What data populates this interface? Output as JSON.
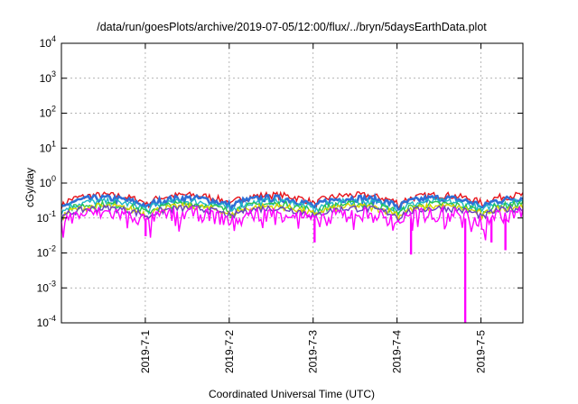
{
  "chart_data": {
    "type": "line",
    "title": "/data/run/goesPlots/archive/2019-07-05/12:00/flux/../bryn/5daysEarthData.plot",
    "xlabel": "Coordinated Universal Time (UTC)",
    "ylabel": "cGy/day",
    "yscale": "log",
    "ylim": [
      0.0001,
      10000
    ],
    "yticks": [
      {
        "value": 0.0001,
        "base": "10",
        "exp": "-4"
      },
      {
        "value": 0.001,
        "base": "10",
        "exp": "-3"
      },
      {
        "value": 0.01,
        "base": "10",
        "exp": "-2"
      },
      {
        "value": 0.1,
        "base": "10",
        "exp": "-1"
      },
      {
        "value": 1,
        "base": "10",
        "exp": "0"
      },
      {
        "value": 10,
        "base": "10",
        "exp": "1"
      },
      {
        "value": 100,
        "base": "10",
        "exp": "2"
      },
      {
        "value": 1000,
        "base": "10",
        "exp": "3"
      },
      {
        "value": 10000,
        "base": "10",
        "exp": "4"
      }
    ],
    "xlim": [
      "2019-06-30 00:00",
      "2019-07-05 12:00"
    ],
    "xticks": [
      "2019-7-1",
      "2019-7-2",
      "2019-7-3",
      "2019-7-4",
      "2019-7-5"
    ],
    "grid": true,
    "legend": "none",
    "series": [
      {
        "color": "#e8141b",
        "level": 0.38
      },
      {
        "color": "#2e6fd6",
        "level": 0.31
      },
      {
        "color": "#1fb6c8",
        "level": 0.25
      },
      {
        "color": "#29c450",
        "level": 0.21
      },
      {
        "color": "#d8d400",
        "level": 0.18
      },
      {
        "color": "#6a3fc2",
        "level": 0.16
      },
      {
        "color": "#ff00ff",
        "level": 0.12
      }
    ],
    "dips": [
      {
        "x": "2019-07-01 00:05",
        "value": 0.03
      },
      {
        "x": "2019-07-03 00:25",
        "value": 0.02
      },
      {
        "x": "2019-07-04 04:00",
        "value": 0.009
      },
      {
        "x": "2019-07-04 19:30",
        "value": 0.0001
      },
      {
        "x": "2019-07-05 03:00",
        "value": 0.02
      },
      {
        "x": "2019-07-05 07:00",
        "value": 0.012
      }
    ]
  }
}
